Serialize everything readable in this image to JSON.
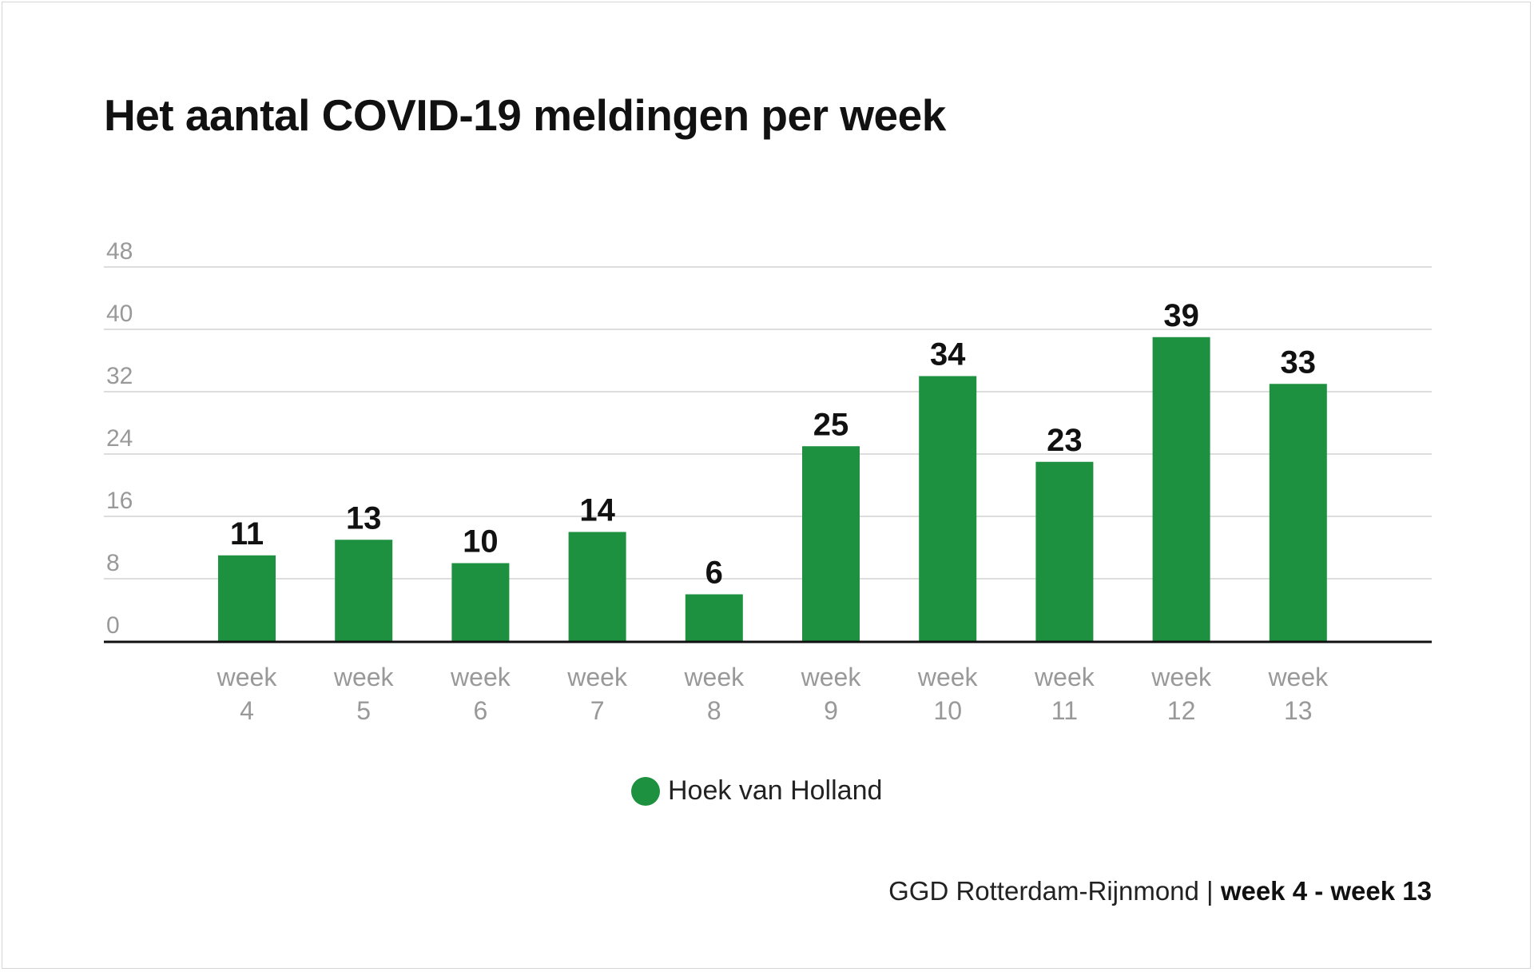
{
  "colors": {
    "bar": "#1e9140",
    "grid": "#dddddd",
    "axis": "#111111",
    "tick_label": "#999999",
    "value_label": "#111111"
  },
  "title": "Het aantal COVID-19 meldingen per week",
  "legend": {
    "label": "Hoek van Holland"
  },
  "source": {
    "prefix": "GGD Rotterdam-Rijnmond |",
    "period": "week 4 - week 13"
  },
  "chart_data": {
    "type": "bar",
    "title": "Het aantal COVID-19 meldingen per week",
    "categories": [
      "week 4",
      "week 5",
      "week 6",
      "week 7",
      "week 8",
      "week 9",
      "week 10",
      "week 11",
      "week 12",
      "week 13"
    ],
    "category_lines": [
      [
        "week",
        "4"
      ],
      [
        "week",
        "5"
      ],
      [
        "week",
        "6"
      ],
      [
        "week",
        "7"
      ],
      [
        "week",
        "8"
      ],
      [
        "week",
        "9"
      ],
      [
        "week",
        "10"
      ],
      [
        "week",
        "11"
      ],
      [
        "week",
        "12"
      ],
      [
        "week",
        "13"
      ]
    ],
    "series": [
      {
        "name": "Hoek van Holland",
        "values": [
          11,
          13,
          10,
          14,
          6,
          25,
          34,
          23,
          39,
          33
        ]
      }
    ],
    "ylim": [
      0,
      48
    ],
    "yticks": [
      0,
      8,
      16,
      24,
      32,
      40,
      48
    ],
    "grid": true,
    "legend_position": "bottom",
    "data_labels": true
  }
}
